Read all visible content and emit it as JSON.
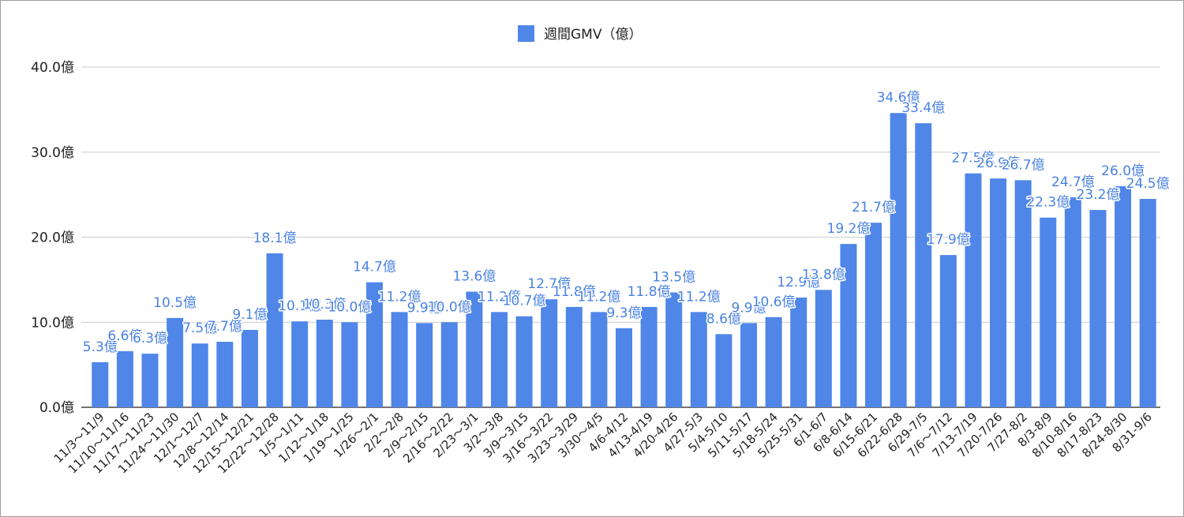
{
  "chart_data": {
    "type": "bar",
    "title": "",
    "xlabel": "",
    "ylabel": "",
    "legend": {
      "position": "top-center",
      "entries": [
        "週間GMV（億）"
      ]
    },
    "series": [
      {
        "name": "週間GMV（億）",
        "color": "#4f86e8",
        "values": [
          5.3,
          6.6,
          6.3,
          10.5,
          7.5,
          7.7,
          9.1,
          18.1,
          10.1,
          10.3,
          10.0,
          14.7,
          11.2,
          9.9,
          10.0,
          13.6,
          11.2,
          10.7,
          12.7,
          11.8,
          11.2,
          9.3,
          11.8,
          13.5,
          11.2,
          8.6,
          9.9,
          10.6,
          12.9,
          13.8,
          19.2,
          21.7,
          34.6,
          33.4,
          17.9,
          27.5,
          26.9,
          26.7,
          22.3,
          24.7,
          23.2,
          26.0,
          24.5
        ],
        "data_labels": [
          "5.3億",
          "6.6億",
          "6.3億",
          "10.5億",
          "7.5億",
          "7.7億",
          "9.1億",
          "18.1億",
          "10.1億",
          "10.3億",
          "10.0億",
          "14.7億",
          "11.2億",
          "9.9億",
          "10.0億",
          "13.6億",
          "11.2億",
          "10.7億",
          "12.7億",
          "11.8億",
          "11.2億",
          "9.3億",
          "11.8億",
          "13.5億",
          "11.2億",
          "8.6億",
          "9.9億",
          "10.6億",
          "12.9億",
          "13.8億",
          "19.2億",
          "21.7億",
          "34.6億",
          "33.4億",
          "17.9億",
          "27.5億",
          "26.9億",
          "26.7億",
          "22.3億",
          "24.7億",
          "23.2億",
          "26.0億",
          "24.5億"
        ]
      }
    ],
    "categories": [
      "11/3～11/9",
      "11/10～11/16",
      "11/17～11/23",
      "11/24～11/30",
      "12/1～12/7",
      "12/8～12/14",
      "12/15～12/21",
      "12/22～12/28",
      "1/5～1/11",
      "1/12～1/18",
      "1/19～1/25",
      "1/26～2/1",
      "2/2～2/8",
      "2/9～2/15",
      "2/16～2/22",
      "2/23～3/1",
      "3/2～3/8",
      "3/9～3/15",
      "3/16～3/22",
      "3/23～3/29",
      "3/30～4/5",
      "4/6-4/12",
      "4/13-4/19",
      "4/20-4/26",
      "4/27-5/3",
      "5/4-5/10",
      "5/11-5/17",
      "5/18-5/24",
      "5/25-5/31",
      "6/1-6/7",
      "6/8-6/14",
      "6/15-6/21",
      "6/22-6/28",
      "6/29-7/5",
      "7/6～7/12",
      "7/13-7/19",
      "7/20-7/26",
      "7/27-8/2",
      "8/3-8/9",
      "8/10-8/16",
      "8/17-8/23",
      "8/24-8/30",
      "8/31-9/6"
    ],
    "ylim": [
      0,
      40
    ],
    "yticks": [
      0,
      10,
      20,
      30,
      40
    ],
    "ytick_labels": [
      "0.0億",
      "10.0億",
      "20.0億",
      "30.0億",
      "40.0億"
    ],
    "grid": true
  }
}
